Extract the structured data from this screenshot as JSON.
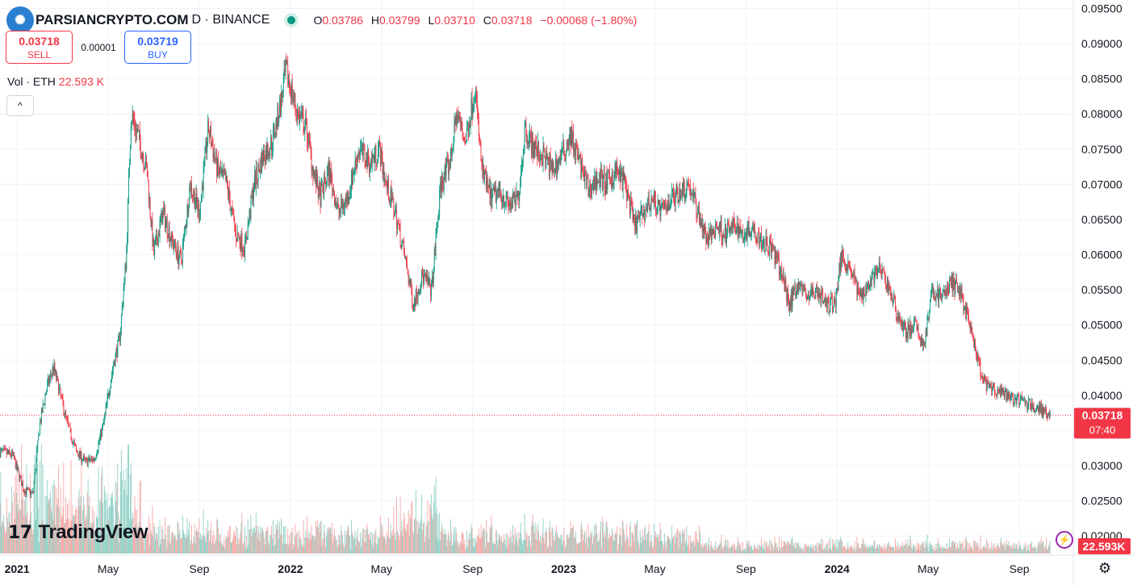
{
  "header": {
    "watermark_text": "PARSIANCRYPTO.COM",
    "symbol_tail": "D · BINANCE",
    "ohlc": {
      "o_label": "O",
      "o": "0.03786",
      "h_label": "H",
      "h": "0.03799",
      "l_label": "L",
      "l": "0.03710",
      "c_label": "C",
      "c": "0.03718",
      "change": "−0.00068 (−1.80%)"
    }
  },
  "trade": {
    "sell_price": "0.03718",
    "sell_label": "SELL",
    "spread": "0.00001",
    "buy_price": "0.03719",
    "buy_label": "BUY"
  },
  "volume_legend": {
    "label": "Vol · ETH",
    "value": "22.593 K"
  },
  "collapse_glyph": "^",
  "branding": {
    "name": "TradingView",
    "mark": "17"
  },
  "colors": {
    "up": "#089981",
    "down": "#f23645",
    "vol_up": "#8fd0c5",
    "vol_down": "#f7a9a7",
    "grid": "#f0f3fa"
  },
  "chart_data": {
    "type": "candlestick",
    "x_ticks": [
      {
        "t": 0,
        "label": "2021"
      },
      {
        "t": 4,
        "label": "May"
      },
      {
        "t": 8,
        "label": "Sep"
      },
      {
        "t": 12,
        "label": "2022"
      },
      {
        "t": 16,
        "label": "May"
      },
      {
        "t": 20,
        "label": "Sep"
      },
      {
        "t": 24,
        "label": "2023"
      },
      {
        "t": 28,
        "label": "May"
      },
      {
        "t": 32,
        "label": "Sep"
      },
      {
        "t": 36,
        "label": "2024"
      },
      {
        "t": 40,
        "label": "May"
      },
      {
        "t": 44,
        "label": "Sep"
      }
    ],
    "x_range_months": [
      -0.75,
      46.3
    ],
    "ylim": [
      0.0175,
      0.0962
    ],
    "y_ticks": [
      "0.02000",
      "0.02500",
      "0.03000",
      "0.03500",
      "0.04000",
      "0.04500",
      "0.05000",
      "0.05500",
      "0.06000",
      "0.06500",
      "0.07000",
      "0.07500",
      "0.08000",
      "0.08500",
      "0.09000",
      "0.09500"
    ],
    "price_path": [
      [
        -0.75,
        0.032
      ],
      [
        -0.2,
        0.0315
      ],
      [
        0.3,
        0.0265
      ],
      [
        0.7,
        0.026
      ],
      [
        1.0,
        0.036
      ],
      [
        1.3,
        0.041
      ],
      [
        1.6,
        0.044
      ],
      [
        1.9,
        0.04
      ],
      [
        2.2,
        0.036
      ],
      [
        2.6,
        0.032
      ],
      [
        3.0,
        0.0305
      ],
      [
        3.4,
        0.031
      ],
      [
        3.8,
        0.036
      ],
      [
        4.2,
        0.044
      ],
      [
        4.5,
        0.048
      ],
      [
        4.8,
        0.06
      ],
      [
        5.0,
        0.08
      ],
      [
        5.3,
        0.077
      ],
      [
        5.7,
        0.072
      ],
      [
        6.0,
        0.06
      ],
      [
        6.4,
        0.066
      ],
      [
        6.8,
        0.062
      ],
      [
        7.2,
        0.059
      ],
      [
        7.6,
        0.07
      ],
      [
        8.0,
        0.066
      ],
      [
        8.4,
        0.078
      ],
      [
        8.8,
        0.072
      ],
      [
        9.2,
        0.07
      ],
      [
        9.6,
        0.063
      ],
      [
        10.0,
        0.061
      ],
      [
        10.4,
        0.07
      ],
      [
        10.8,
        0.074
      ],
      [
        11.2,
        0.076
      ],
      [
        11.6,
        0.082
      ],
      [
        11.8,
        0.086
      ],
      [
        12.0,
        0.084
      ],
      [
        12.3,
        0.08
      ],
      [
        12.7,
        0.078
      ],
      [
        13.0,
        0.072
      ],
      [
        13.3,
        0.068
      ],
      [
        13.7,
        0.072
      ],
      [
        14.1,
        0.066
      ],
      [
        14.5,
        0.068
      ],
      [
        15.0,
        0.075
      ],
      [
        15.5,
        0.073
      ],
      [
        15.9,
        0.075
      ],
      [
        16.2,
        0.07
      ],
      [
        16.6,
        0.066
      ],
      [
        17.0,
        0.06
      ],
      [
        17.4,
        0.053
      ],
      [
        17.8,
        0.057
      ],
      [
        18.2,
        0.055
      ],
      [
        18.6,
        0.07
      ],
      [
        19.0,
        0.073
      ],
      [
        19.3,
        0.08
      ],
      [
        19.7,
        0.076
      ],
      [
        20.1,
        0.084
      ],
      [
        20.4,
        0.072
      ],
      [
        20.8,
        0.068
      ],
      [
        21.2,
        0.069
      ],
      [
        21.6,
        0.067
      ],
      [
        22.0,
        0.068
      ],
      [
        22.3,
        0.078
      ],
      [
        22.7,
        0.075
      ],
      [
        23.1,
        0.074
      ],
      [
        23.5,
        0.072
      ],
      [
        23.9,
        0.074
      ],
      [
        24.3,
        0.077
      ],
      [
        24.7,
        0.073
      ],
      [
        25.1,
        0.069
      ],
      [
        25.5,
        0.071
      ],
      [
        25.9,
        0.07
      ],
      [
        26.3,
        0.072
      ],
      [
        26.7,
        0.07
      ],
      [
        27.1,
        0.064
      ],
      [
        27.5,
        0.066
      ],
      [
        27.9,
        0.068
      ],
      [
        28.3,
        0.066
      ],
      [
        28.7,
        0.068
      ],
      [
        29.1,
        0.069
      ],
      [
        29.5,
        0.07
      ],
      [
        29.9,
        0.066
      ],
      [
        30.3,
        0.062
      ],
      [
        30.7,
        0.064
      ],
      [
        31.1,
        0.063
      ],
      [
        31.5,
        0.064
      ],
      [
        31.9,
        0.063
      ],
      [
        32.3,
        0.064
      ],
      [
        32.7,
        0.062
      ],
      [
        33.1,
        0.061
      ],
      [
        33.5,
        0.058
      ],
      [
        33.9,
        0.053
      ],
      [
        34.3,
        0.056
      ],
      [
        34.7,
        0.054
      ],
      [
        35.1,
        0.055
      ],
      [
        35.5,
        0.053
      ],
      [
        35.9,
        0.053
      ],
      [
        36.2,
        0.06
      ],
      [
        36.6,
        0.058
      ],
      [
        37.0,
        0.054
      ],
      [
        37.4,
        0.056
      ],
      [
        37.8,
        0.058
      ],
      [
        38.2,
        0.056
      ],
      [
        38.6,
        0.052
      ],
      [
        39.0,
        0.049
      ],
      [
        39.4,
        0.05
      ],
      [
        39.8,
        0.047
      ],
      [
        40.2,
        0.055
      ],
      [
        40.6,
        0.054
      ],
      [
        41.0,
        0.056
      ],
      [
        41.4,
        0.055
      ],
      [
        41.8,
        0.05
      ],
      [
        42.1,
        0.046
      ],
      [
        42.4,
        0.042
      ],
      [
        42.7,
        0.041
      ],
      [
        43.0,
        0.0405
      ],
      [
        43.4,
        0.04
      ],
      [
        43.8,
        0.0395
      ],
      [
        44.2,
        0.039
      ],
      [
        44.6,
        0.0385
      ],
      [
        45.0,
        0.038
      ],
      [
        45.3,
        0.0372
      ]
    ],
    "volume": {
      "peak_k": 160,
      "last_k": 22.593
    },
    "last_price": "0.03718",
    "countdown": "07:40",
    "last_volume": "22.593K"
  }
}
